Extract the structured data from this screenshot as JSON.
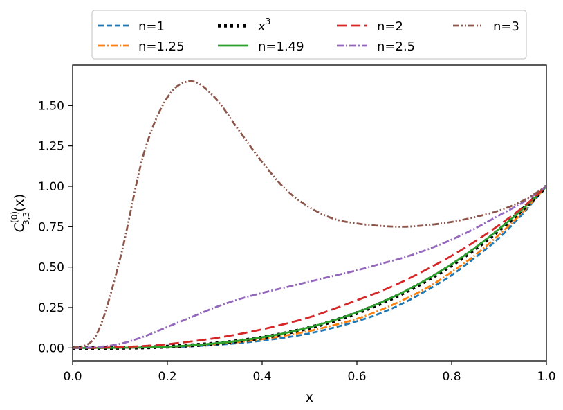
{
  "chart_data": {
    "type": "line",
    "title": "",
    "xlabel": "x",
    "ylabel": {
      "base": "C",
      "sup": "(0)",
      "sub": "3,3",
      "arg": "(x)"
    },
    "xlim": [
      0.0,
      1.0
    ],
    "ylim": [
      -0.08,
      1.75
    ],
    "xticks": [
      0.0,
      0.2,
      0.4,
      0.6,
      0.8,
      1.0
    ],
    "xtick_labels": [
      "0.0",
      "0.2",
      "0.4",
      "0.6",
      "0.8",
      "1.0"
    ],
    "yticks": [
      0.0,
      0.25,
      0.5,
      0.75,
      1.0,
      1.25,
      1.5
    ],
    "ytick_labels": [
      "0.00",
      "0.25",
      "0.50",
      "0.75",
      "1.00",
      "1.25",
      "1.50"
    ],
    "legend_position": "top-center-outside",
    "x": [
      0,
      0.05,
      0.1,
      0.15,
      0.2,
      0.25,
      0.3,
      0.35,
      0.4,
      0.45,
      0.5,
      0.55,
      0.6,
      0.65,
      0.7,
      0.75,
      0.8,
      0.85,
      0.9,
      0.95,
      1.0
    ],
    "series": [
      {
        "name": "n=1",
        "label_base": "n=1",
        "label_sup": "",
        "color": "#1f77b4",
        "dash": "8,4",
        "width": 2.8,
        "values": [
          0,
          0,
          0.001,
          0.002,
          0.005,
          0.01,
          0.018,
          0.03,
          0.045,
          0.065,
          0.09,
          0.125,
          0.165,
          0.215,
          0.28,
          0.36,
          0.45,
          0.56,
          0.68,
          0.83,
          1.0
        ]
      },
      {
        "name": "n=1.25",
        "label_base": "n=1.25",
        "label_sup": "",
        "color": "#ff7f0e",
        "dash": "10,3,2,3",
        "width": 2.8,
        "values": [
          0,
          0,
          0.001,
          0.003,
          0.007,
          0.013,
          0.023,
          0.036,
          0.054,
          0.077,
          0.105,
          0.14,
          0.18,
          0.235,
          0.3,
          0.375,
          0.47,
          0.575,
          0.7,
          0.84,
          1.0
        ]
      },
      {
        "name": "x^3",
        "label_base": "x",
        "label_sup": "3",
        "color": "#000000",
        "dash": "4,5",
        "width": 5.5,
        "values": [
          0,
          0,
          0.001,
          0.003,
          0.008,
          0.016,
          0.027,
          0.043,
          0.064,
          0.091,
          0.125,
          0.166,
          0.216,
          0.275,
          0.343,
          0.422,
          0.512,
          0.614,
          0.729,
          0.857,
          1.0
        ]
      },
      {
        "name": "n=1.49",
        "label_base": "n=1.49",
        "label_sup": "",
        "color": "#2ca02c",
        "dash": "",
        "width": 2.8,
        "values": [
          0,
          0,
          0.001,
          0.003,
          0.008,
          0.016,
          0.028,
          0.044,
          0.066,
          0.093,
          0.128,
          0.17,
          0.22,
          0.28,
          0.348,
          0.428,
          0.518,
          0.62,
          0.735,
          0.86,
          1.0
        ]
      },
      {
        "name": "n=2",
        "label_base": "n=2",
        "label_sup": "",
        "color": "#d62728",
        "dash": "14,6",
        "width": 2.8,
        "values": [
          0,
          0.001,
          0.005,
          0.012,
          0.023,
          0.04,
          0.06,
          0.085,
          0.115,
          0.15,
          0.19,
          0.24,
          0.295,
          0.35,
          0.415,
          0.49,
          0.57,
          0.66,
          0.76,
          0.87,
          1.0
        ]
      },
      {
        "name": "n=2.5",
        "label_base": "n=2.5",
        "label_sup": "",
        "color": "#9467bd",
        "dash": "10,3,2,3",
        "width": 2.8,
        "values": [
          0,
          0.005,
          0.025,
          0.07,
          0.13,
          0.19,
          0.25,
          0.3,
          0.34,
          0.375,
          0.41,
          0.445,
          0.48,
          0.52,
          0.56,
          0.61,
          0.67,
          0.74,
          0.82,
          0.9,
          1.0
        ]
      },
      {
        "name": "n=3",
        "label_base": "n=3",
        "label_sup": "",
        "color": "#8c564b",
        "dash": "9,3,2,3,2,3",
        "width": 2.8,
        "values": [
          0,
          0.08,
          0.55,
          1.2,
          1.55,
          1.65,
          1.55,
          1.35,
          1.15,
          0.98,
          0.87,
          0.8,
          0.77,
          0.755,
          0.75,
          0.76,
          0.78,
          0.81,
          0.85,
          0.91,
          1.0
        ]
      }
    ]
  }
}
